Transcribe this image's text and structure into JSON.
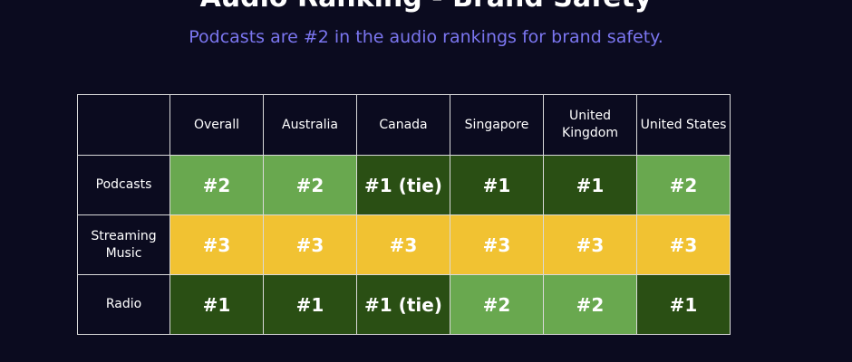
{
  "title": "Audio Ranking - Brand Safety",
  "subtitle": "Podcasts are #2 in the audio rankings for brand safety.",
  "colors": {
    "background": "#0b0b1f",
    "subtitle": "#7b76f0",
    "rank_1": "#2a4f14",
    "rank_2": "#69a84f",
    "rank_3": "#f1c232"
  },
  "chart_data": {
    "type": "table",
    "title": "Audio Ranking - Brand Safety",
    "subtitle": "Podcasts are #2 in the audio rankings for brand safety.",
    "columns": [
      "Overall",
      "Australia",
      "Canada",
      "Singapore",
      "United Kingdom",
      "United States"
    ],
    "rows": [
      {
        "label": "Podcasts",
        "values": [
          "#2",
          "#2",
          "#1 (tie)",
          "#1",
          "#1",
          "#2"
        ]
      },
      {
        "label": "Streaming Music",
        "values": [
          "#3",
          "#3",
          "#3",
          "#3",
          "#3",
          "#3"
        ]
      },
      {
        "label": "Radio",
        "values": [
          "#1",
          "#1",
          "#1 (tie)",
          "#2",
          "#2",
          "#1"
        ]
      }
    ]
  }
}
